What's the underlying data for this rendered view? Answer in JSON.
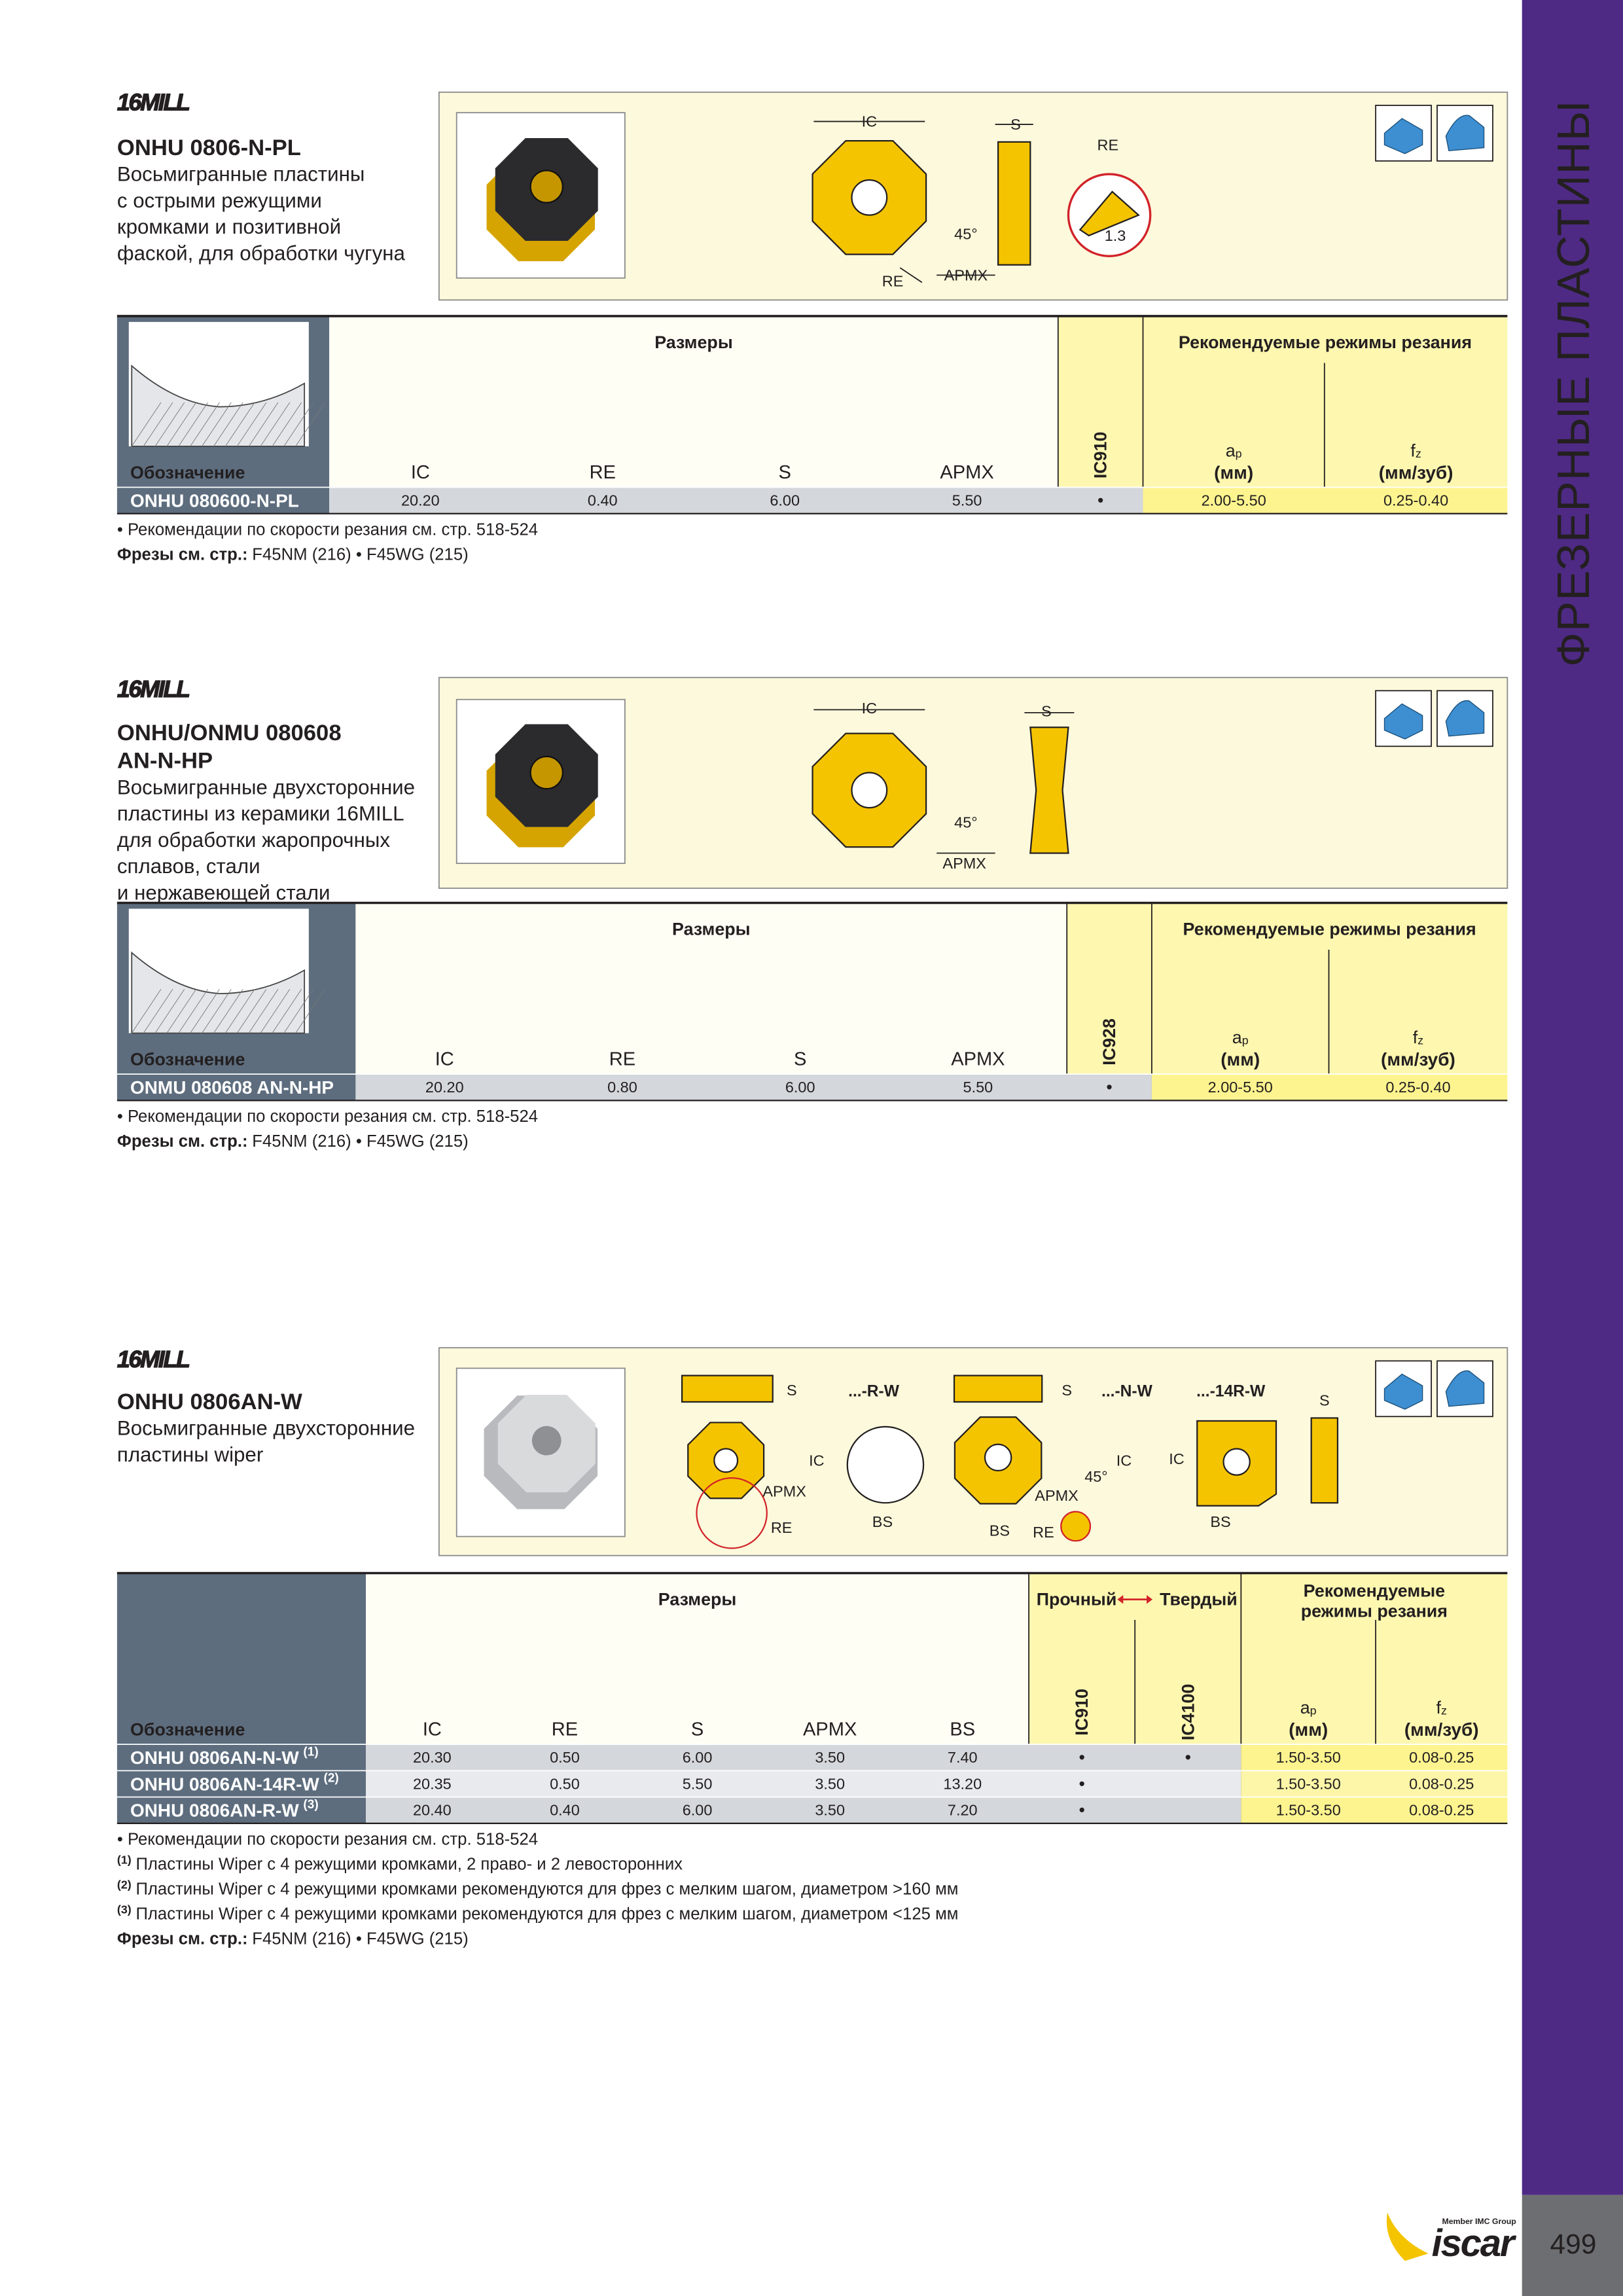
{
  "side_title": "ФРЕЗЕРНЫЕ ПЛАСТИНЫ",
  "page_number": "499",
  "logo": {
    "member": "Member IMC Group",
    "brand": "iscar"
  },
  "sections": [
    {
      "brand": "16MILL",
      "title": [
        "ONHU 0806-N-PL"
      ],
      "description": [
        "Восьмигранные пластины",
        "с острыми режущими",
        "кромками и позитивной",
        "фаской, для обработки чугуна"
      ],
      "diagram_labels": [
        "IC",
        "S",
        "RE",
        "45°",
        "1.3",
        "APMX",
        "RE"
      ],
      "table": {
        "designation_header": "Обозначение",
        "dims_header": "Размеры",
        "cutting_header": [
          "Рекомендуемые режимы резания"
        ],
        "dim_columns": [
          "IC",
          "RE",
          "S",
          "APMX"
        ],
        "grade_columns": [
          "IC910"
        ],
        "cutting_columns": [
          {
            "symbol": "a",
            "sub": "p",
            "unit": "(мм)"
          },
          {
            "symbol": "f",
            "sub": "z",
            "unit": "(мм/зуб)"
          }
        ],
        "rows": [
          {
            "designation": "ONHU 080600-N-PL",
            "dims": [
              "20.20",
              "0.40",
              "6.00",
              "5.50"
            ],
            "grades": [
              "•"
            ],
            "cutting": [
              "2.00-5.50",
              "0.25-0.40"
            ]
          }
        ]
      },
      "notes": [
        {
          "text": "• Рекомендации по скорости резания см. стр. 518-524"
        }
      ],
      "cutters": {
        "label": "Фрезы см. стр.:",
        "text": "F45NM (216) • F45WG (215)"
      }
    },
    {
      "brand": "16MILL",
      "title": [
        "ONHU/ONMU 080608",
        "AN-N-HP"
      ],
      "description": [
        "Восьмигранные двухсторонние",
        "пластины из керамики 16MILL",
        "для обработки жаропрочных",
        "сплавов, стали",
        "и нержавеющей стали"
      ],
      "diagram_labels": [
        "IC",
        "S",
        "45°",
        "APMX"
      ],
      "table": {
        "designation_header": "Обозначение",
        "dims_header": "Размеры",
        "cutting_header": [
          "Рекомендуемые режимы резания"
        ],
        "dim_columns": [
          "IC",
          "RE",
          "S",
          "APMX"
        ],
        "grade_columns": [
          "IC928"
        ],
        "cutting_columns": [
          {
            "symbol": "a",
            "sub": "p",
            "unit": "(мм)"
          },
          {
            "symbol": "f",
            "sub": "z",
            "unit": "(мм/зуб)"
          }
        ],
        "rows": [
          {
            "designation": "ONMU 080608 AN-N-HP",
            "dims": [
              "20.20",
              "0.80",
              "6.00",
              "5.50"
            ],
            "grades": [
              "•"
            ],
            "cutting": [
              "2.00-5.50",
              "0.25-0.40"
            ]
          }
        ]
      },
      "notes": [
        {
          "text": "• Рекомендации по скорости резания см. стр. 518-524"
        }
      ],
      "cutters": {
        "label": "Фрезы см. стр.:",
        "text": "F45NM (216) • F45WG (215)"
      }
    },
    {
      "brand": "16MILL",
      "title": [
        "ONHU 0806AN-W"
      ],
      "description": [
        "Восьмигранные двухсторонние",
        "пластины wiper"
      ],
      "diagram_labels": [
        "S",
        "...-R-W",
        "IC",
        "APMX",
        "RE",
        "BS",
        "S",
        "...-N-W",
        "IC",
        "45°",
        "APMX",
        "BS",
        "RE",
        "...-14R-W",
        "S",
        "IC",
        "BS"
      ],
      "table": {
        "designation_header": "Обозначение",
        "dims_header": "Размеры",
        "grade_header": {
          "left": "Прочный",
          "right": "Твердый"
        },
        "cutting_header": [
          "Рекомендуемые",
          "режимы резания"
        ],
        "dim_columns": [
          "IC",
          "RE",
          "S",
          "APMX",
          "BS"
        ],
        "grade_columns": [
          "IC910",
          "IC4100"
        ],
        "cutting_columns": [
          {
            "symbol": "a",
            "sub": "p",
            "unit": "(мм)"
          },
          {
            "symbol": "f",
            "sub": "z",
            "unit": "(мм/зуб)"
          }
        ],
        "rows": [
          {
            "designation": "ONHU 0806AN-N-W",
            "note": "(1)",
            "dims": [
              "20.30",
              "0.50",
              "6.00",
              "3.50",
              "7.40"
            ],
            "grades": [
              "•",
              "•"
            ],
            "cutting": [
              "1.50-3.50",
              "0.08-0.25"
            ]
          },
          {
            "designation": "ONHU 0806AN-14R-W",
            "note": "(2)",
            "dims": [
              "20.35",
              "0.50",
              "5.50",
              "3.50",
              "13.20"
            ],
            "grades": [
              "•",
              null
            ],
            "cutting": [
              "1.50-3.50",
              "0.08-0.25"
            ]
          },
          {
            "designation": "ONHU 0806AN-R-W",
            "note": "(3)",
            "dims": [
              "20.40",
              "0.40",
              "6.00",
              "3.50",
              "7.20"
            ],
            "grades": [
              "•",
              null
            ],
            "cutting": [
              "1.50-3.50",
              "0.08-0.25"
            ]
          }
        ]
      },
      "notes": [
        {
          "text": "• Рекомендации по скорости резания см. стр. 518-524"
        },
        {
          "ref": "(1)",
          "text": "Пластины Wiper с 4 режущими кромками, 2 право- и 2 левосторонних"
        },
        {
          "ref": "(2)",
          "text": "Пластины Wiper с 4 режущими кромками рекомендуются для фрез с мелким шагом, диаметром >160 мм"
        },
        {
          "ref": "(3)",
          "text": "Пластины Wiper с 4 режущими кромками рекомендуются для фрез с мелким шагом, диаметром <125 мм"
        }
      ],
      "cutters": {
        "label": "Фрезы см. стр.:",
        "text": "F45NM (216) • F45WG (215)"
      }
    }
  ]
}
